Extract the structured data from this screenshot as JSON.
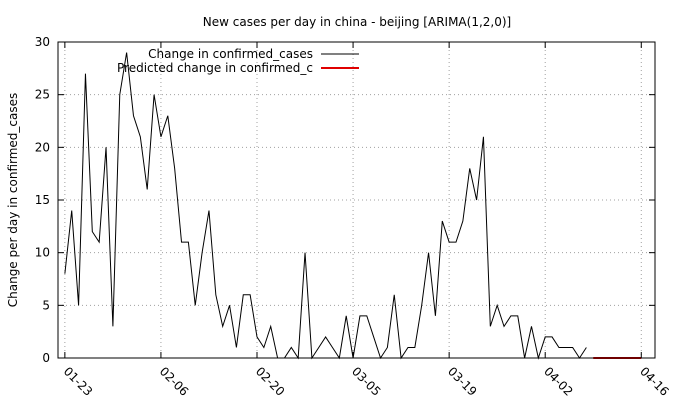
{
  "chart_data": {
    "type": "line",
    "title": "New cases per day in china - beijing [ARIMA(1,2,0)]",
    "xlabel": "",
    "ylabel": "Change per day in confirmed_cases",
    "ylim": [
      0,
      30
    ],
    "yticks": [
      0,
      5,
      10,
      15,
      20,
      25,
      30
    ],
    "xlim": [
      "2020-01-22",
      "2020-04-18"
    ],
    "xticks": [
      {
        "date": "2020-01-23",
        "label": "01-23"
      },
      {
        "date": "2020-02-06",
        "label": "02-06"
      },
      {
        "date": "2020-02-20",
        "label": "02-20"
      },
      {
        "date": "2020-03-05",
        "label": "03-05"
      },
      {
        "date": "2020-03-19",
        "label": "03-19"
      },
      {
        "date": "2020-04-02",
        "label": "04-02"
      },
      {
        "date": "2020-04-16",
        "label": "04-16"
      }
    ],
    "grid": true,
    "legend_position": "top-left",
    "series": [
      {
        "name": "Change in confirmed_cases",
        "color": "#000000",
        "x": [
          "2020-01-23",
          "2020-01-24",
          "2020-01-25",
          "2020-01-26",
          "2020-01-27",
          "2020-01-28",
          "2020-01-29",
          "2020-01-30",
          "2020-01-31",
          "2020-02-01",
          "2020-02-02",
          "2020-02-03",
          "2020-02-04",
          "2020-02-05",
          "2020-02-06",
          "2020-02-07",
          "2020-02-08",
          "2020-02-09",
          "2020-02-10",
          "2020-02-11",
          "2020-02-12",
          "2020-02-13",
          "2020-02-14",
          "2020-02-15",
          "2020-02-16",
          "2020-02-17",
          "2020-02-18",
          "2020-02-19",
          "2020-02-20",
          "2020-02-21",
          "2020-02-22",
          "2020-02-23",
          "2020-02-24",
          "2020-02-25",
          "2020-02-26",
          "2020-02-27",
          "2020-02-28",
          "2020-02-29",
          "2020-03-01",
          "2020-03-02",
          "2020-03-03",
          "2020-03-04",
          "2020-03-05",
          "2020-03-06",
          "2020-03-07",
          "2020-03-08",
          "2020-03-09",
          "2020-03-10",
          "2020-03-11",
          "2020-03-12",
          "2020-03-13",
          "2020-03-14",
          "2020-03-15",
          "2020-03-16",
          "2020-03-17",
          "2020-03-18",
          "2020-03-19",
          "2020-03-20",
          "2020-03-21",
          "2020-03-22",
          "2020-03-23",
          "2020-03-24",
          "2020-03-25",
          "2020-03-26",
          "2020-03-27",
          "2020-03-28",
          "2020-03-29",
          "2020-03-30",
          "2020-03-31",
          "2020-04-01",
          "2020-04-02",
          "2020-04-03",
          "2020-04-04",
          "2020-04-05",
          "2020-04-06",
          "2020-04-07",
          "2020-04-08"
        ],
        "values": [
          8,
          14,
          5,
          27,
          12,
          11,
          20,
          3,
          25,
          29,
          23,
          21,
          16,
          25,
          21,
          23,
          18,
          11,
          11,
          5,
          10,
          14,
          6,
          3,
          5,
          1,
          6,
          6,
          2,
          1,
          3,
          0,
          0,
          1,
          0,
          10,
          0,
          1,
          2,
          1,
          0,
          4,
          0,
          4,
          4,
          2,
          0,
          1,
          6,
          0,
          1,
          1,
          5,
          10,
          4,
          13,
          11,
          11,
          13,
          18,
          15,
          21,
          3,
          5,
          3,
          4,
          4,
          0,
          3,
          0,
          2,
          2,
          1,
          1,
          1,
          0,
          1
        ]
      },
      {
        "name": "Predicted change in confirmed_c",
        "color": "#e00000",
        "x": [
          "2020-04-09",
          "2020-04-10",
          "2020-04-11",
          "2020-04-12",
          "2020-04-13",
          "2020-04-14",
          "2020-04-15",
          "2020-04-16"
        ],
        "values": [
          0,
          0,
          0,
          0,
          0,
          0,
          0,
          0
        ]
      }
    ]
  }
}
